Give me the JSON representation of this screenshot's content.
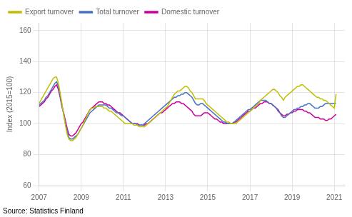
{
  "chart_data": {
    "type": "line",
    "ylabel": "Index (2015=100)",
    "annotations": [
      "Source: Statistics Finland"
    ],
    "xlim": [
      2007,
      2021.5
    ],
    "xticks": [
      2007,
      2009,
      2011,
      2013,
      2015,
      2017,
      2019,
      2021
    ],
    "ylim": [
      60,
      165
    ],
    "yticks": [
      60,
      80,
      100,
      120,
      140,
      160
    ],
    "grid": true,
    "legend": "upper left",
    "x": [
      2007,
      2007.0833333333,
      2007.1666666667,
      2007.25,
      2007.3333333333,
      2007.4166666667,
      2007.5,
      2007.5833333333,
      2007.6666666667,
      2007.75,
      2007.8333333333,
      2007.9166666667,
      2008,
      2008.0833333333,
      2008.1666666667,
      2008.25,
      2008.3333333333,
      2008.4166666667,
      2008.5,
      2008.5833333333,
      2008.6666666667,
      2008.75,
      2008.8333333333,
      2008.9166666667,
      2009,
      2009.0833333333,
      2009.1666666667,
      2009.25,
      2009.3333333333,
      2009.4166666667,
      2009.5,
      2009.5833333333,
      2009.6666666667,
      2009.75,
      2009.8333333333,
      2009.9166666667,
      2010,
      2010.0833333333,
      2010.1666666667,
      2010.25,
      2010.3333333333,
      2010.4166666667,
      2010.5,
      2010.5833333333,
      2010.6666666667,
      2010.75,
      2010.8333333333,
      2010.9166666667,
      2011,
      2011.0833333333,
      2011.1666666667,
      2011.25,
      2011.3333333333,
      2011.4166666667,
      2011.5,
      2011.5833333333,
      2011.6666666667,
      2011.75,
      2011.8333333333,
      2011.9166666667,
      2012,
      2012.0833333333,
      2012.1666666667,
      2012.25,
      2012.3333333333,
      2012.4166666667,
      2012.5,
      2012.5833333333,
      2012.6666666667,
      2012.75,
      2012.8333333333,
      2012.9166666667,
      2013,
      2013.0833333333,
      2013.1666666667,
      2013.25,
      2013.3333333333,
      2013.4166666667,
      2013.5,
      2013.5833333333,
      2013.6666666667,
      2013.75,
      2013.8333333333,
      2013.9166666667,
      2014,
      2014.0833333333,
      2014.1666666667,
      2014.25,
      2014.3333333333,
      2014.4166666667,
      2014.5,
      2014.5833333333,
      2014.6666666667,
      2014.75,
      2014.8333333333,
      2014.9166666667,
      2015,
      2015.0833333333,
      2015.1666666667,
      2015.25,
      2015.3333333333,
      2015.4166666667,
      2015.5,
      2015.5833333333,
      2015.6666666667,
      2015.75,
      2015.8333333333,
      2015.9166666667,
      2016,
      2016.0833333333,
      2016.1666666667,
      2016.25,
      2016.3333333333,
      2016.4166666667,
      2016.5,
      2016.5833333333,
      2016.6666666667,
      2016.75,
      2016.8333333333,
      2016.9166666667,
      2017,
      2017.0833333333,
      2017.1666666667,
      2017.25,
      2017.3333333333,
      2017.4166666667,
      2017.5,
      2017.5833333333,
      2017.6666666667,
      2017.75,
      2017.8333333333,
      2017.9166666667,
      2018,
      2018.0833333333,
      2018.1666666667,
      2018.25,
      2018.3333333333,
      2018.4166666667,
      2018.5,
      2018.5833333333,
      2018.6666666667,
      2018.75,
      2018.8333333333,
      2018.9166666667,
      2019,
      2019.0833333333,
      2019.1666666667,
      2019.25,
      2019.3333333333,
      2019.4166666667,
      2019.5,
      2019.5833333333,
      2019.6666666667,
      2019.75,
      2019.8333333333,
      2019.9166666667,
      2020,
      2020.0833333333,
      2020.1666666667,
      2020.25,
      2020.3333333333,
      2020.4166666667,
      2020.5,
      2020.5833333333,
      2020.6666666667,
      2020.75,
      2020.8333333333,
      2020.9166666667,
      2021,
      2021.0833333333
    ],
    "series": [
      {
        "name": "Export turnover",
        "color": "#BFBF00",
        "values": [
          113,
          115,
          117,
          119,
          121,
          123,
          125,
          127,
          129,
          130,
          130,
          126,
          120,
          113,
          106,
          99,
          93,
          90,
          89,
          89,
          90,
          91,
          93,
          95,
          97,
          99,
          102,
          104,
          107,
          109,
          110,
          110,
          111,
          111,
          111,
          111,
          111,
          110,
          110,
          109,
          108,
          108,
          107,
          106,
          105,
          104,
          103,
          102,
          101,
          100,
          100,
          100,
          100,
          100,
          99,
          99,
          99,
          98,
          98,
          98,
          98,
          99,
          100,
          101,
          102,
          103,
          104,
          105,
          106,
          107,
          108,
          109,
          110,
          111,
          113,
          115,
          117,
          119,
          120,
          121,
          121,
          122,
          123,
          124,
          124,
          123,
          121,
          120,
          118,
          116,
          116,
          116,
          116,
          116,
          115,
          113,
          112,
          111,
          110,
          109,
          108,
          107,
          106,
          105,
          104,
          103,
          102,
          101,
          101,
          100,
          100,
          100,
          100,
          101,
          102,
          103,
          104,
          105,
          106,
          107,
          108,
          109,
          110,
          111,
          112,
          113,
          115,
          116,
          117,
          118,
          119,
          120,
          121,
          122,
          122,
          121,
          120,
          118,
          117,
          115,
          117,
          118,
          119,
          120,
          121,
          122,
          123,
          124,
          124,
          125,
          125,
          124,
          123,
          122,
          121,
          120,
          119,
          118,
          117,
          117,
          116,
          116,
          115,
          115,
          114,
          113,
          112,
          111,
          110,
          119
        ]
      },
      {
        "name": "Total turnover",
        "color": "#4472C4",
        "values": [
          112,
          113,
          114,
          115,
          117,
          118,
          120,
          122,
          124,
          126,
          127,
          124,
          118,
          112,
          106,
          100,
          95,
          91,
          90,
          90,
          91,
          92,
          93,
          95,
          97,
          99,
          101,
          103,
          105,
          107,
          108,
          109,
          110,
          111,
          112,
          112,
          112,
          112,
          112,
          111,
          110,
          110,
          109,
          108,
          107,
          107,
          106,
          105,
          105,
          104,
          103,
          102,
          101,
          100,
          100,
          100,
          99,
          99,
          99,
          99,
          100,
          101,
          102,
          103,
          104,
          105,
          106,
          107,
          108,
          109,
          110,
          111,
          112,
          113,
          114,
          115,
          116,
          117,
          117,
          118,
          118,
          119,
          119,
          120,
          120,
          119,
          118,
          117,
          115,
          113,
          112,
          112,
          113,
          113,
          112,
          111,
          110,
          109,
          108,
          107,
          106,
          105,
          104,
          103,
          102,
          101,
          101,
          100,
          100,
          100,
          100,
          101,
          102,
          103,
          104,
          105,
          106,
          107,
          108,
          109,
          109,
          110,
          111,
          112,
          113,
          114,
          115,
          115,
          115,
          115,
          114,
          113,
          113,
          112,
          111,
          110,
          108,
          107,
          105,
          104,
          104,
          105,
          106,
          107,
          108,
          109,
          109,
          110,
          110,
          111,
          111,
          112,
          112,
          113,
          113,
          112,
          111,
          110,
          110,
          110,
          111,
          111,
          112,
          113,
          113,
          113,
          113,
          113,
          113,
          113
        ]
      },
      {
        "name": "Domestic turnover",
        "color": "#CC0099",
        "values": [
          111,
          112,
          113,
          114,
          116,
          117,
          119,
          121,
          122,
          124,
          125,
          122,
          117,
          111,
          107,
          102,
          97,
          93,
          92,
          92,
          93,
          94,
          96,
          98,
          100,
          101,
          103,
          105,
          107,
          109,
          110,
          111,
          112,
          113,
          114,
          114,
          114,
          113,
          113,
          112,
          112,
          111,
          110,
          109,
          108,
          107,
          107,
          106,
          105,
          104,
          103,
          102,
          101,
          100,
          100,
          100,
          100,
          99,
          99,
          99,
          99,
          100,
          100,
          101,
          102,
          103,
          104,
          105,
          106,
          107,
          107,
          108,
          109,
          110,
          111,
          112,
          113,
          113,
          114,
          114,
          114,
          113,
          113,
          112,
          111,
          110,
          109,
          108,
          106,
          105,
          105,
          105,
          105,
          106,
          107,
          107,
          107,
          106,
          105,
          104,
          103,
          103,
          102,
          101,
          101,
          100,
          100,
          100,
          100,
          100,
          100,
          101,
          101,
          102,
          103,
          104,
          105,
          106,
          107,
          108,
          108,
          109,
          110,
          110,
          111,
          112,
          113,
          113,
          114,
          114,
          114,
          113,
          113,
          112,
          111,
          110,
          109,
          107,
          106,
          105,
          105,
          106,
          106,
          107,
          107,
          108,
          108,
          109,
          109,
          109,
          109,
          108,
          108,
          107,
          107,
          106,
          105,
          104,
          104,
          104,
          103,
          103,
          103,
          102,
          102,
          103,
          103,
          104,
          105,
          106
        ]
      }
    ]
  }
}
